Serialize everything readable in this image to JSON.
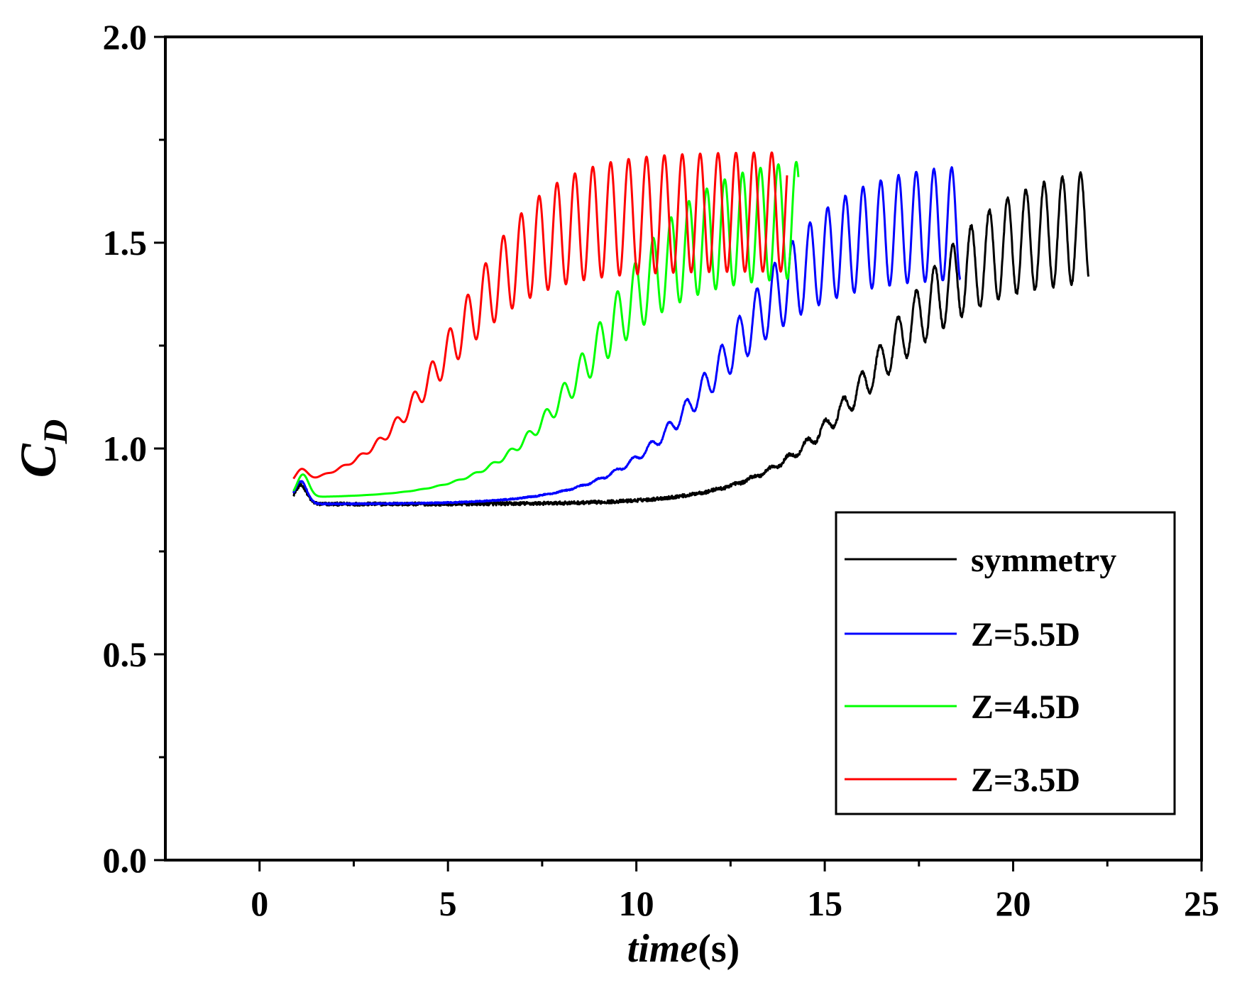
{
  "chart_data": {
    "type": "line",
    "title": "",
    "xlabel": "time(s)",
    "xlabel_italic_part": "time",
    "xlabel_unit_part": "(s)",
    "ylabel": "C_D",
    "ylabel_main": "C",
    "ylabel_sub": "D",
    "xlim": [
      -2.5,
      25
    ],
    "ylim": [
      0,
      2.0
    ],
    "x_ticks": [
      0,
      5,
      10,
      15,
      20,
      25
    ],
    "x_tick_labels": [
      "0",
      "5",
      "10",
      "15",
      "20",
      "25"
    ],
    "x_minor_step": 2.5,
    "y_ticks": [
      0,
      0.5,
      1.0,
      1.5,
      2.0
    ],
    "y_tick_labels": [
      "0.0",
      "0.5",
      "1.0",
      "1.5",
      "2.0"
    ],
    "y_minor_step": 0.25,
    "grid": false,
    "legend_position": "lower-right",
    "series": [
      {
        "name": "symmetry",
        "color": "#000000",
        "t_start": 0.9,
        "t_end": 22.0,
        "initial_bump": {
          "peak": 0.91,
          "at": 1.1,
          "settle": 0.865
        },
        "growth": {
          "onset": 11.0,
          "mid": 16.5,
          "width": 1.5,
          "pre_slope": 0.011
        },
        "mean_final": 1.555,
        "amp_final": 0.14,
        "period": 0.485,
        "noise": 0.004
      },
      {
        "name": "Z=5.5D",
        "color": "#0000ff",
        "t_start": 0.9,
        "t_end": 18.6,
        "initial_bump": {
          "peak": 0.92,
          "at": 1.1,
          "settle": 0.865
        },
        "growth": {
          "onset": 6.5,
          "mid": 12.3,
          "width": 1.4,
          "pre_slope": 0.012
        },
        "mean_final": 1.555,
        "amp_final": 0.14,
        "period": 0.47,
        "noise": 0.0015
      },
      {
        "name": "Z=4.5D",
        "color": "#00ff00",
        "t_start": 0.9,
        "t_end": 14.3,
        "initial_bump": {
          "peak": 0.935,
          "at": 1.15,
          "settle": 0.88
        },
        "growth": {
          "onset": 3.2,
          "mid": 8.8,
          "width": 1.3,
          "pre_slope": 0.015
        },
        "mean_final": 1.565,
        "amp_final": 0.145,
        "period": 0.475,
        "noise": 0.0
      },
      {
        "name": "Z=3.5D",
        "color": "#ff0000",
        "t_start": 0.9,
        "t_end": 14.0,
        "initial_bump": {
          "peak": 0.925,
          "at": 1.1,
          "settle": 0.895
        },
        "growth": {
          "onset": 1.6,
          "mid": 5.0,
          "width": 1.2,
          "pre_slope": 0.02
        },
        "mean_final": 1.575,
        "amp_final": 0.145,
        "period": 0.475,
        "noise": 0.0
      }
    ]
  }
}
